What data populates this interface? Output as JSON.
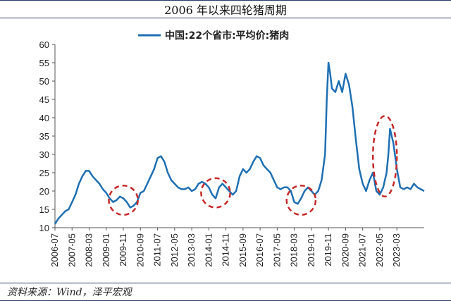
{
  "header": {
    "title": "2006 年以来四轮猪周期"
  },
  "footer": {
    "source": "资料来源：Wind，泽平宏观"
  },
  "colors": {
    "line": "#1f6fb2",
    "circle": "#c62828"
  },
  "chart_data": {
    "type": "line",
    "title": "2006 年以来四轮猪周期",
    "xlabel": "",
    "ylabel": "",
    "ylim": [
      10,
      60
    ],
    "yticks": [
      10,
      15,
      20,
      25,
      30,
      35,
      40,
      45,
      50,
      55,
      60
    ],
    "xlim": [
      "2006-07",
      "2024-07"
    ],
    "x_tick_labels": [
      "2006-07",
      "2007-05",
      "2008-03",
      "2009-01",
      "2009-11",
      "2010-09",
      "2011-07",
      "2012-05",
      "2013-03",
      "2014-01",
      "2014-11",
      "2015-09",
      "2016-07",
      "2017-05",
      "2018-03",
      "2019-01",
      "2019-11",
      "2020-09",
      "2021-07",
      "2022-05",
      "2023-03"
    ],
    "legend": {
      "position": "top-center"
    },
    "grid": false,
    "series": [
      {
        "name": "中国:22个省市:平均价:猪肉",
        "x": [
          "2006-07",
          "2006-09",
          "2006-11",
          "2007-01",
          "2007-03",
          "2007-05",
          "2007-07",
          "2007-09",
          "2007-11",
          "2008-01",
          "2008-03",
          "2008-05",
          "2008-07",
          "2008-09",
          "2008-11",
          "2009-01",
          "2009-03",
          "2009-05",
          "2009-07",
          "2009-09",
          "2009-11",
          "2010-01",
          "2010-03",
          "2010-05",
          "2010-07",
          "2010-09",
          "2010-11",
          "2011-01",
          "2011-03",
          "2011-05",
          "2011-07",
          "2011-09",
          "2011-11",
          "2012-01",
          "2012-03",
          "2012-05",
          "2012-07",
          "2012-09",
          "2012-11",
          "2013-01",
          "2013-03",
          "2013-05",
          "2013-07",
          "2013-09",
          "2013-11",
          "2014-01",
          "2014-03",
          "2014-05",
          "2014-07",
          "2014-09",
          "2014-11",
          "2015-01",
          "2015-03",
          "2015-05",
          "2015-07",
          "2015-09",
          "2015-11",
          "2016-01",
          "2016-03",
          "2016-05",
          "2016-07",
          "2016-09",
          "2016-11",
          "2017-01",
          "2017-03",
          "2017-05",
          "2017-07",
          "2017-09",
          "2017-11",
          "2018-01",
          "2018-03",
          "2018-05",
          "2018-07",
          "2018-09",
          "2018-11",
          "2019-01",
          "2019-03",
          "2019-05",
          "2019-07",
          "2019-09",
          "2019-10",
          "2019-11",
          "2019-12",
          "2020-01",
          "2020-03",
          "2020-05",
          "2020-07",
          "2020-09",
          "2020-11",
          "2021-01",
          "2021-03",
          "2021-05",
          "2021-07",
          "2021-09",
          "2021-11",
          "2022-01",
          "2022-03",
          "2022-05",
          "2022-07",
          "2022-09",
          "2022-10",
          "2022-11",
          "2023-01",
          "2023-03",
          "2023-05",
          "2023-07",
          "2023-09",
          "2023-11",
          "2024-01",
          "2024-03",
          "2024-05",
          "2024-07"
        ],
        "y": [
          11,
          12.5,
          13.5,
          14.5,
          15,
          17,
          19,
          22,
          24,
          25.5,
          25.5,
          24,
          23,
          22,
          20.5,
          19.5,
          18,
          17,
          17.5,
          18.5,
          18,
          17,
          15.5,
          16,
          17,
          19.5,
          20,
          22,
          24,
          26,
          29,
          29.5,
          28,
          25,
          23,
          22,
          21,
          20.5,
          20.5,
          21,
          20,
          20.5,
          22,
          22.5,
          22,
          21,
          19,
          18,
          21,
          22,
          21,
          20,
          19,
          20,
          24,
          26,
          25,
          26,
          28,
          29.5,
          29,
          27,
          26,
          25,
          23,
          21,
          20.5,
          21,
          21,
          20,
          17,
          16.5,
          18,
          20,
          21,
          20,
          19,
          20,
          23,
          30,
          45,
          55,
          52,
          48,
          47,
          50,
          47,
          52,
          49,
          43,
          34,
          26,
          22,
          20,
          23,
          25,
          20,
          19,
          21,
          25,
          30,
          37,
          33,
          26,
          21,
          20.5,
          21,
          20.5,
          22,
          21,
          20.5,
          20
        ]
      }
    ],
    "annotations": [
      {
        "type": "ellipse",
        "x_center": "2009-11",
        "y_center": 17.5,
        "x_span_months": 17,
        "y_span": 8
      },
      {
        "type": "ellipse",
        "x_center": "2014-05",
        "y_center": 19.5,
        "x_span_months": 17,
        "y_span": 8
      },
      {
        "type": "ellipse",
        "x_center": "2018-07",
        "y_center": 17.5,
        "x_span_months": 17,
        "y_span": 8
      },
      {
        "type": "ellipse",
        "x_center": "2022-08",
        "y_center": 29.5,
        "x_span_months": 14,
        "y_span": 22
      }
    ]
  }
}
